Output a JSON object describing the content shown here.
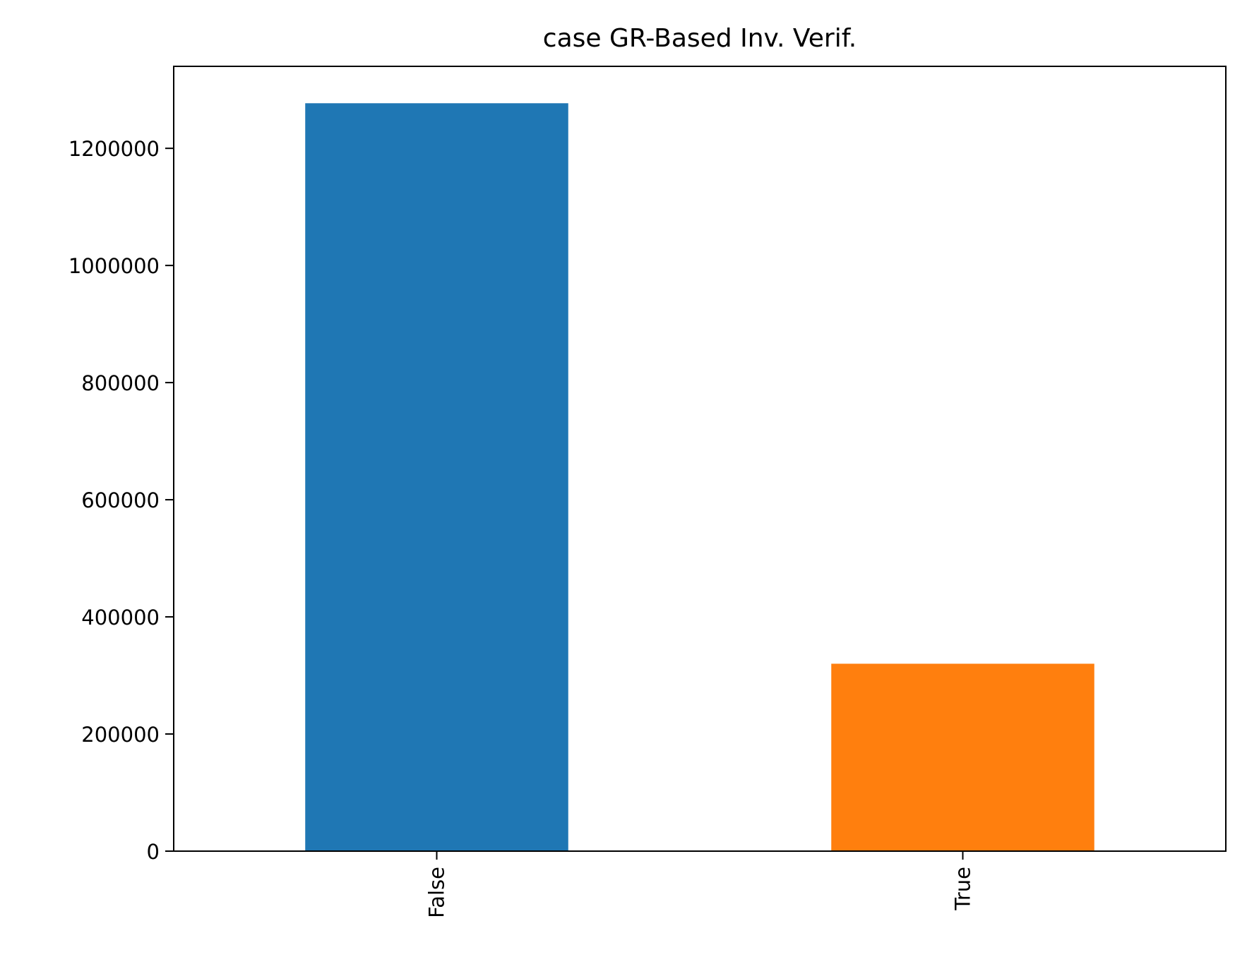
{
  "chart_data": {
    "type": "bar",
    "title": "case GR-Based Inv. Verif.",
    "xlabel": "",
    "ylabel": "",
    "categories": [
      "False",
      "True"
    ],
    "values": [
      1277000,
      320000
    ],
    "colors": [
      "#1f77b4",
      "#ff7f0e"
    ],
    "ylim": [
      0,
      1340000
    ],
    "yticks": [
      0,
      200000,
      400000,
      600000,
      800000,
      1000000,
      1200000
    ],
    "ytick_labels": [
      "0",
      "200000",
      "400000",
      "600000",
      "800000",
      "1000000",
      "1200000"
    ],
    "xtick_rotation": "vertical",
    "grid": false,
    "legend": "none"
  }
}
